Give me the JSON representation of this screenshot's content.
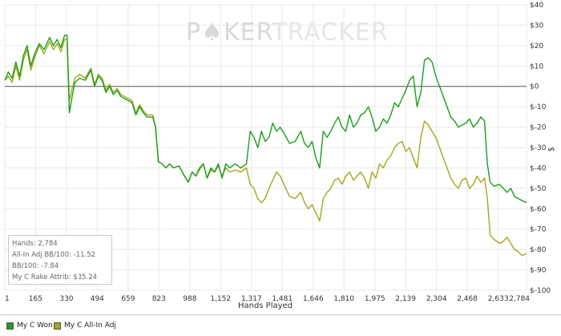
{
  "watermark": {
    "part1": "P",
    "part2": "KER",
    "part3": "TRACKER"
  },
  "stats": {
    "hands": "Hands: 2,784",
    "allin_bb": "All-In Adj BB/100: -11.52",
    "bb": "BB/100: -7.84",
    "rake": "My C Rake Attrib: $35.24"
  },
  "legend": {
    "won": "My C Won",
    "allin": "My C All-In Adj"
  },
  "colors": {
    "won": "#1a9e1a",
    "allin": "#a6a61a",
    "grid": "#e8e8e8",
    "zero": "#555555"
  },
  "chart_data": {
    "type": "line",
    "xlabel": "Hands Played",
    "ylabel": "$",
    "xlim": [
      1,
      2784
    ],
    "ylim": [
      -100,
      40
    ],
    "x_ticks": [
      "1",
      "165",
      "330",
      "494",
      "659",
      "823",
      "988",
      "1,152",
      "1,317",
      "1,481",
      "1,646",
      "1,810",
      "1,975",
      "2,139",
      "2,304",
      "2,468",
      "2,633",
      "2,784"
    ],
    "y_ticks": [
      "$40",
      "$30",
      "$20",
      "$10",
      "$0",
      "$-10",
      "$-20",
      "$-30",
      "$-40",
      "$-50",
      "$-60",
      "$-70",
      "$-80",
      "$-90",
      "$-100"
    ],
    "legend_position": "bottom-left",
    "series": [
      {
        "name": "My C Won",
        "color": "#1a9e1a",
        "points": [
          [
            1,
            3
          ],
          [
            20,
            7
          ],
          [
            40,
            4
          ],
          [
            60,
            12
          ],
          [
            80,
            5
          ],
          [
            100,
            15
          ],
          [
            120,
            20
          ],
          [
            140,
            10
          ],
          [
            160,
            16
          ],
          [
            185,
            21
          ],
          [
            210,
            18
          ],
          [
            240,
            24
          ],
          [
            260,
            20
          ],
          [
            280,
            23
          ],
          [
            300,
            19
          ],
          [
            320,
            25
          ],
          [
            333,
            25
          ],
          [
            345,
            -13
          ],
          [
            360,
            -5
          ],
          [
            375,
            2
          ],
          [
            400,
            4
          ],
          [
            430,
            3
          ],
          [
            460,
            8
          ],
          [
            480,
            0
          ],
          [
            500,
            5
          ],
          [
            520,
            3
          ],
          [
            540,
            -3
          ],
          [
            560,
            0
          ],
          [
            580,
            -4
          ],
          [
            600,
            -2
          ],
          [
            620,
            -5
          ],
          [
            640,
            -6
          ],
          [
            660,
            -7
          ],
          [
            680,
            -8
          ],
          [
            700,
            -14
          ],
          [
            720,
            -10
          ],
          [
            740,
            -13
          ],
          [
            760,
            -15
          ],
          [
            790,
            -15
          ],
          [
            805,
            -20
          ],
          [
            820,
            -37
          ],
          [
            840,
            -38
          ],
          [
            860,
            -40
          ],
          [
            880,
            -38
          ],
          [
            900,
            -40
          ],
          [
            930,
            -39
          ],
          [
            960,
            -44
          ],
          [
            980,
            -47
          ],
          [
            1000,
            -42
          ],
          [
            1020,
            -44
          ],
          [
            1040,
            -40
          ],
          [
            1060,
            -38
          ],
          [
            1080,
            -45
          ],
          [
            1100,
            -40
          ],
          [
            1120,
            -42
          ],
          [
            1140,
            -38
          ],
          [
            1160,
            -45
          ],
          [
            1180,
            -38
          ],
          [
            1200,
            -40
          ],
          [
            1230,
            -38
          ],
          [
            1260,
            -40
          ],
          [
            1290,
            -38
          ],
          [
            1310,
            -22
          ],
          [
            1330,
            -25
          ],
          [
            1350,
            -30
          ],
          [
            1370,
            -22
          ],
          [
            1390,
            -27
          ],
          [
            1410,
            -25
          ],
          [
            1430,
            -18
          ],
          [
            1450,
            -22
          ],
          [
            1470,
            -20
          ],
          [
            1490,
            -23
          ],
          [
            1520,
            -28
          ],
          [
            1550,
            -27
          ],
          [
            1580,
            -22
          ],
          [
            1600,
            -28
          ],
          [
            1620,
            -30
          ],
          [
            1640,
            -27
          ],
          [
            1660,
            -35
          ],
          [
            1680,
            -40
          ],
          [
            1700,
            -22
          ],
          [
            1720,
            -25
          ],
          [
            1740,
            -22
          ],
          [
            1760,
            -18
          ],
          [
            1780,
            -15
          ],
          [
            1800,
            -20
          ],
          [
            1820,
            -22
          ],
          [
            1840,
            -14
          ],
          [
            1860,
            -20
          ],
          [
            1880,
            -18
          ],
          [
            1900,
            -14
          ],
          [
            1920,
            -13
          ],
          [
            1940,
            -10
          ],
          [
            1960,
            -15
          ],
          [
            1980,
            -22
          ],
          [
            2000,
            -20
          ],
          [
            2020,
            -16
          ],
          [
            2040,
            -18
          ],
          [
            2060,
            -14
          ],
          [
            2080,
            -8
          ],
          [
            2100,
            -10
          ],
          [
            2120,
            -6
          ],
          [
            2140,
            -2
          ],
          [
            2160,
            3
          ],
          [
            2180,
            5
          ],
          [
            2200,
            -10
          ],
          [
            2220,
            -3
          ],
          [
            2240,
            13
          ],
          [
            2260,
            14
          ],
          [
            2280,
            12
          ],
          [
            2300,
            5
          ],
          [
            2320,
            0
          ],
          [
            2340,
            -5
          ],
          [
            2360,
            -10
          ],
          [
            2380,
            -15
          ],
          [
            2400,
            -17
          ],
          [
            2420,
            -20
          ],
          [
            2440,
            -19
          ],
          [
            2460,
            -18
          ],
          [
            2480,
            -16
          ],
          [
            2500,
            -20
          ],
          [
            2520,
            -18
          ],
          [
            2540,
            -15
          ],
          [
            2560,
            -17
          ],
          [
            2575,
            -38
          ],
          [
            2590,
            -47
          ],
          [
            2610,
            -49
          ],
          [
            2640,
            -48
          ],
          [
            2660,
            -50
          ],
          [
            2680,
            -52
          ],
          [
            2700,
            -50
          ],
          [
            2720,
            -54
          ],
          [
            2740,
            -55
          ],
          [
            2760,
            -56
          ],
          [
            2784,
            -57
          ]
        ]
      },
      {
        "name": "My C All-In Adj",
        "color": "#a6a61a",
        "points": [
          [
            1,
            3
          ],
          [
            20,
            5
          ],
          [
            40,
            2
          ],
          [
            60,
            10
          ],
          [
            80,
            3
          ],
          [
            100,
            13
          ],
          [
            120,
            18
          ],
          [
            140,
            8
          ],
          [
            160,
            14
          ],
          [
            185,
            20
          ],
          [
            210,
            16
          ],
          [
            240,
            22
          ],
          [
            260,
            18
          ],
          [
            280,
            21
          ],
          [
            300,
            17
          ],
          [
            320,
            23
          ],
          [
            333,
            23
          ],
          [
            345,
            -7
          ],
          [
            360,
            -1
          ],
          [
            375,
            4
          ],
          [
            400,
            6
          ],
          [
            430,
            4
          ],
          [
            460,
            9
          ],
          [
            480,
            1
          ],
          [
            500,
            6
          ],
          [
            520,
            4
          ],
          [
            540,
            -2
          ],
          [
            560,
            1
          ],
          [
            580,
            -3
          ],
          [
            600,
            -1
          ],
          [
            620,
            -4
          ],
          [
            640,
            -5
          ],
          [
            660,
            -6
          ],
          [
            680,
            -7
          ],
          [
            700,
            -13
          ],
          [
            720,
            -9
          ],
          [
            740,
            -12
          ],
          [
            760,
            -14
          ],
          [
            790,
            -14
          ],
          [
            805,
            -20
          ],
          [
            820,
            -37
          ],
          [
            840,
            -38
          ],
          [
            860,
            -40
          ],
          [
            880,
            -38
          ],
          [
            900,
            -40
          ],
          [
            930,
            -39
          ],
          [
            960,
            -44
          ],
          [
            980,
            -47
          ],
          [
            1000,
            -42
          ],
          [
            1020,
            -44
          ],
          [
            1040,
            -41
          ],
          [
            1060,
            -38
          ],
          [
            1080,
            -45
          ],
          [
            1100,
            -41
          ],
          [
            1120,
            -42
          ],
          [
            1140,
            -39
          ],
          [
            1160,
            -44
          ],
          [
            1180,
            -40
          ],
          [
            1200,
            -42
          ],
          [
            1230,
            -41
          ],
          [
            1260,
            -42
          ],
          [
            1290,
            -40
          ],
          [
            1310,
            -48
          ],
          [
            1330,
            -50
          ],
          [
            1350,
            -55
          ],
          [
            1370,
            -57
          ],
          [
            1390,
            -55
          ],
          [
            1410,
            -50
          ],
          [
            1430,
            -46
          ],
          [
            1450,
            -42
          ],
          [
            1470,
            -44
          ],
          [
            1490,
            -48
          ],
          [
            1520,
            -54
          ],
          [
            1550,
            -55
          ],
          [
            1580,
            -52
          ],
          [
            1600,
            -57
          ],
          [
            1620,
            -60
          ],
          [
            1640,
            -58
          ],
          [
            1660,
            -62
          ],
          [
            1680,
            -66
          ],
          [
            1700,
            -55
          ],
          [
            1720,
            -52
          ],
          [
            1740,
            -50
          ],
          [
            1760,
            -46
          ],
          [
            1780,
            -45
          ],
          [
            1800,
            -48
          ],
          [
            1820,
            -44
          ],
          [
            1840,
            -42
          ],
          [
            1860,
            -46
          ],
          [
            1880,
            -44
          ],
          [
            1900,
            -42
          ],
          [
            1920,
            -45
          ],
          [
            1940,
            -50
          ],
          [
            1960,
            -42
          ],
          [
            1980,
            -45
          ],
          [
            2000,
            -38
          ],
          [
            2020,
            -40
          ],
          [
            2040,
            -36
          ],
          [
            2060,
            -34
          ],
          [
            2080,
            -30
          ],
          [
            2100,
            -28
          ],
          [
            2120,
            -27
          ],
          [
            2140,
            -32
          ],
          [
            2160,
            -30
          ],
          [
            2180,
            -35
          ],
          [
            2200,
            -40
          ],
          [
            2220,
            -25
          ],
          [
            2240,
            -17
          ],
          [
            2260,
            -19
          ],
          [
            2280,
            -22
          ],
          [
            2300,
            -25
          ],
          [
            2320,
            -30
          ],
          [
            2340,
            -35
          ],
          [
            2360,
            -40
          ],
          [
            2380,
            -45
          ],
          [
            2400,
            -48
          ],
          [
            2420,
            -50
          ],
          [
            2440,
            -46
          ],
          [
            2460,
            -45
          ],
          [
            2480,
            -50
          ],
          [
            2500,
            -48
          ],
          [
            2520,
            -44
          ],
          [
            2540,
            -47
          ],
          [
            2560,
            -45
          ],
          [
            2575,
            -55
          ],
          [
            2590,
            -73
          ],
          [
            2610,
            -75
          ],
          [
            2640,
            -77
          ],
          [
            2660,
            -76
          ],
          [
            2680,
            -74
          ],
          [
            2700,
            -77
          ],
          [
            2720,
            -80
          ],
          [
            2740,
            -81
          ],
          [
            2760,
            -83
          ],
          [
            2784,
            -82
          ]
        ]
      }
    ]
  }
}
